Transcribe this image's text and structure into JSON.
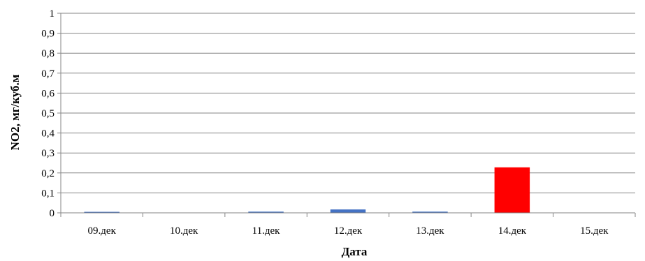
{
  "chart_data": {
    "type": "bar",
    "title": "",
    "xlabel": "Дата",
    "ylabel": "NO2, мг/куб.м",
    "categories": [
      "09.дек",
      "10.дек",
      "11.дек",
      "12.дек",
      "13.дек",
      "14.дек",
      "15.дек"
    ],
    "values": [
      0.005,
      0,
      0.006,
      0.017,
      0.006,
      0.228,
      0
    ],
    "bar_colors": [
      "#4472c4",
      "#4472c4",
      "#4472c4",
      "#4472c4",
      "#4472c4",
      "#ff0000",
      "#4472c4"
    ],
    "ylim": [
      0,
      1
    ],
    "yticks": [
      "0",
      "0,1",
      "0,2",
      "0,3",
      "0,4",
      "0,5",
      "0,6",
      "0,7",
      "0,8",
      "0,9",
      "1"
    ],
    "grid": true,
    "legend": "none"
  }
}
